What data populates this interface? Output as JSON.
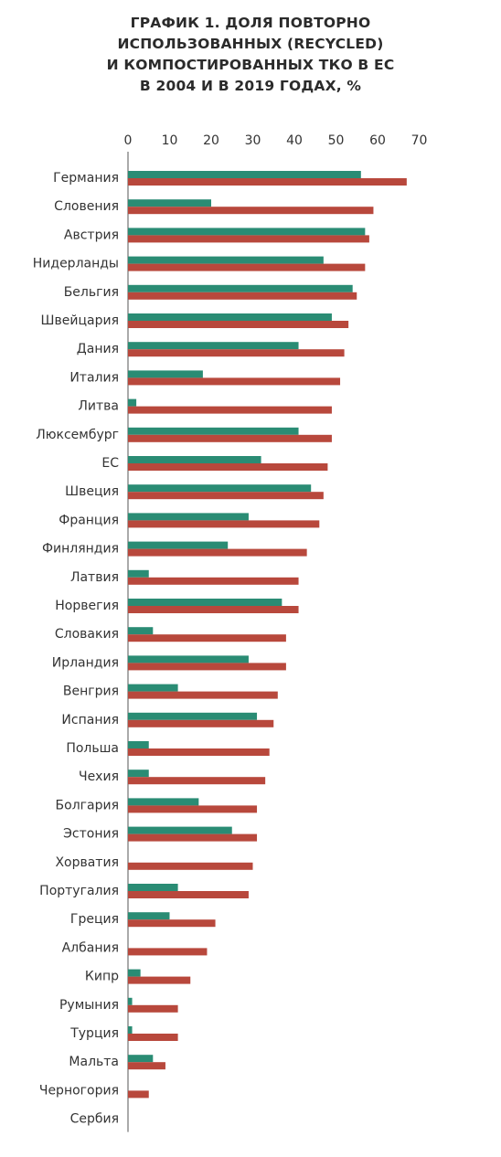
{
  "title_lines": [
    "ГРАФИК 1. ДОЛЯ ПОВТОРНО",
    "ИСПОЛЬЗОВАННЫХ (RECYCLED)",
    "И КОМПОСТИРОВАННЫХ ТКО В ЕС",
    "В 2004 И В 2019 ГОДАХ, %"
  ],
  "colors": {
    "series_2004": "#2a8c74",
    "series_2019": "#b8483c",
    "axis": "#555555"
  },
  "chart_data": {
    "type": "bar",
    "orientation": "horizontal",
    "title": "ГРАФИК 1. ДОЛЯ ПОВТОРНО ИСПОЛЬЗОВАННЫХ (RECYCLED) И КОМПОСТИРОВАННЫХ ТКО В ЕС В 2004 И В 2019 ГОДАХ, %",
    "xlim": [
      0,
      70
    ],
    "xticks": [
      0,
      10,
      20,
      30,
      40,
      50,
      60,
      70
    ],
    "axis_position": "top",
    "grid": false,
    "legend": "none",
    "categories": [
      "Германия",
      "Словения",
      "Австрия",
      "Нидерланды",
      "Бельгия",
      "Швейцария",
      "Дания",
      "Италия",
      "Литва",
      "Люксембург",
      "ЕС",
      "Швеция",
      "Франция",
      "Финляндия",
      "Латвия",
      "Норвегия",
      "Словакия",
      "Ирландия",
      "Венгрия",
      "Испания",
      "Польша",
      "Чехия",
      "Болгария",
      "Эстония",
      "Хорватия",
      "Португалия",
      "Греция",
      "Албания",
      "Кипр",
      "Румыния",
      "Турция",
      "Мальта",
      "Черногория",
      "Сербия"
    ],
    "series": [
      {
        "values": [
          56,
          20,
          57,
          47,
          54,
          49,
          41,
          18,
          2,
          41,
          32,
          44,
          29,
          24,
          5,
          37,
          6,
          29,
          12,
          31,
          5,
          5,
          17,
          25,
          0,
          12,
          10,
          0,
          3,
          1,
          1,
          6,
          0,
          0
        ]
      },
      {
        "values": [
          67,
          59,
          58,
          57,
          55,
          53,
          52,
          51,
          49,
          49,
          48,
          47,
          46,
          43,
          41,
          41,
          38,
          38,
          36,
          35,
          34,
          33,
          31,
          31,
          30,
          29,
          21,
          19,
          15,
          12,
          12,
          9,
          5,
          0
        ]
      }
    ]
  }
}
